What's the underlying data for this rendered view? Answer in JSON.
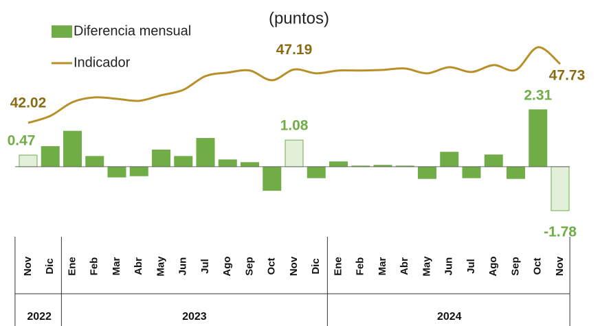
{
  "chart_data": {
    "type": "bar-line",
    "title": "(puntos)",
    "groups": [
      {
        "name": "2022",
        "categories": [
          "Nov",
          "Dic"
        ]
      },
      {
        "name": "2023",
        "categories": [
          "Ene",
          "Feb",
          "Mar",
          "Abr",
          "May",
          "Jun",
          "Jul",
          "Ago",
          "Sep",
          "Oct",
          "Nov",
          "Dic"
        ]
      },
      {
        "name": "2024",
        "categories": [
          "Ene",
          "Feb",
          "Mar",
          "Abr",
          "May",
          "Jun",
          "Jul",
          "Ago",
          "Sep",
          "Oct",
          "Nov"
        ]
      }
    ],
    "ylim": [
      -2.7,
      6.2
    ],
    "y2lim": [
      31.3,
      52.6
    ],
    "series": [
      {
        "name": "Diferencia mensual",
        "type": "bar",
        "color": "#70ad47",
        "values": [
          0.47,
          0.82,
          1.44,
          0.42,
          -0.42,
          -0.37,
          0.68,
          0.42,
          1.15,
          0.28,
          0.17,
          -0.96,
          1.08,
          -0.45,
          0.2,
          0.03,
          0.06,
          0.03,
          -0.48,
          0.59,
          -0.45,
          0.48,
          -0.48,
          2.31,
          -1.78
        ],
        "colors": [
          "#e2efd9",
          "#70ad47",
          "#70ad47",
          "#70ad47",
          "#70ad47",
          "#70ad47",
          "#70ad47",
          "#70ad47",
          "#70ad47",
          "#70ad47",
          "#70ad47",
          "#70ad47",
          "#e2efd9",
          "#70ad47",
          "#70ad47",
          "#70ad47",
          "#70ad47",
          "#70ad47",
          "#70ad47",
          "#70ad47",
          "#70ad47",
          "#70ad47",
          "#70ad47",
          "#70ad47",
          "#e2efd9"
        ],
        "value_labels": [
          "0.47",
          null,
          null,
          null,
          null,
          null,
          null,
          null,
          null,
          null,
          null,
          null,
          "1.08",
          null,
          null,
          null,
          null,
          null,
          null,
          null,
          null,
          null,
          null,
          "2.31",
          "-1.78"
        ],
        "label_color": "#70ad47"
      },
      {
        "name": "Indicador",
        "type": "line",
        "axis": "y2",
        "color": "#b8902a",
        "values": [
          42.02,
          42.69,
          44.02,
          44.49,
          44.35,
          44.15,
          44.69,
          45.22,
          46.55,
          46.89,
          47.09,
          46.15,
          47.19,
          46.82,
          47.09,
          47.09,
          47.15,
          47.29,
          46.82,
          47.42,
          46.95,
          47.62,
          47.15,
          49.35,
          47.73
        ],
        "value_labels": [
          "42.02",
          null,
          null,
          null,
          null,
          null,
          null,
          null,
          null,
          null,
          null,
          null,
          "47.19",
          null,
          null,
          null,
          null,
          null,
          null,
          null,
          null,
          null,
          null,
          null,
          "47.73"
        ],
        "label_color": "#8a6b14"
      }
    ]
  }
}
